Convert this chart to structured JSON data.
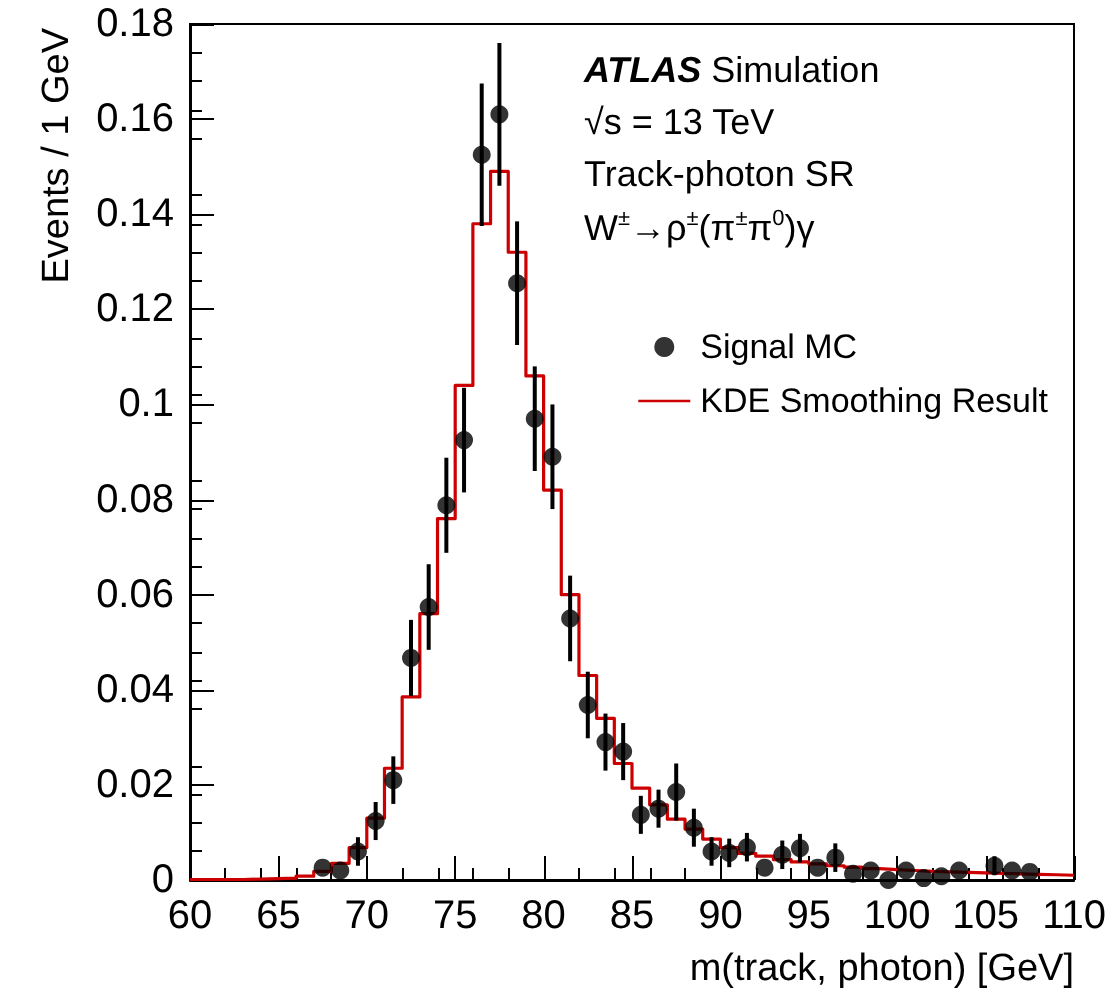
{
  "chart_data": {
    "type": "scatter",
    "xlabel": "m(track, photon) [GeV]",
    "ylabel": "Events / 1 GeV",
    "annotations": [
      "ATLAS Simulation",
      "√s = 13 TeV",
      "Track-photon SR",
      "W$^{±}$→ρ$^{±}$(π$^{±}$π$^{0}$)γ"
    ],
    "xlim": [
      60,
      110
    ],
    "xticks": [
      60,
      65,
      70,
      75,
      80,
      85,
      90,
      95,
      100,
      105,
      110
    ],
    "ylim": [
      0,
      0.18
    ],
    "yticks": [
      0,
      0.02,
      0.04,
      0.06,
      0.08,
      0.1,
      0.12,
      0.14,
      0.16,
      0.18
    ],
    "grid": false,
    "legend": "top right",
    "marker": "circle",
    "series": [
      {
        "name": "Signal MC",
        "color": "#000000",
        "x": [
          67.5,
          68.5,
          69.5,
          70.5,
          71.5,
          72.5,
          73.5,
          74.5,
          75.5,
          76.5,
          77.5,
          78.5,
          79.5,
          80.5,
          81.5,
          82.5,
          83.5,
          84.5,
          85.5,
          86.5,
          87.5,
          88.5,
          89.5,
          90.5,
          91.5,
          92.5,
          93.5,
          94.5,
          95.5,
          96.5,
          97.5,
          98.5,
          99.5,
          100.5,
          101.5,
          102.5,
          103.5,
          105.5,
          106.5,
          107.5
        ],
        "values": [
          0.0026,
          0.002,
          0.006,
          0.0124,
          0.021,
          0.0467,
          0.0574,
          0.0788,
          0.0925,
          0.1525,
          0.161,
          0.1255,
          0.097,
          0.089,
          0.055,
          0.0368,
          0.029,
          0.027,
          0.0137,
          0.015,
          0.0185,
          0.011,
          0.006,
          0.0057,
          0.0069,
          0.0026,
          0.0053,
          0.0067,
          0.0026,
          0.0047,
          0.0013,
          0.002,
          0,
          0.002,
          0.0004,
          0.0008,
          0.002,
          0.003,
          0.002,
          0.0017
        ],
        "errors": [
          null,
          null,
          0.003,
          0.004,
          0.005,
          0.008,
          0.009,
          0.01,
          0.011,
          0.015,
          0.015,
          0.013,
          0.011,
          0.011,
          0.009,
          0.007,
          0.006,
          0.006,
          0.004,
          0.004,
          0.006,
          0.004,
          0.003,
          0.003,
          0.003,
          null,
          0.003,
          0.003,
          null,
          0.003,
          null,
          null,
          null,
          null,
          null,
          null,
          null,
          0.002,
          null,
          null
        ]
      },
      {
        "name": "KDE Smoothing Result",
        "type": "histogram",
        "color": "#cc0000",
        "bins": [
          60,
          61,
          62,
          63,
          64,
          65,
          66,
          67,
          68,
          69,
          70,
          71,
          72,
          73,
          74,
          75,
          76,
          77,
          78,
          79,
          80,
          81,
          82,
          83,
          84,
          85,
          86,
          87,
          88,
          89,
          90,
          91,
          92,
          93,
          94,
          95,
          96,
          97,
          98,
          99,
          100,
          101,
          102,
          103,
          104,
          105,
          106,
          107,
          108,
          109,
          110
        ],
        "values": [
          0.0001,
          0.0001,
          0.0001,
          0.0002,
          0.0003,
          0.0004,
          0.0008,
          0.0018,
          0.0035,
          0.0068,
          0.013,
          0.0235,
          0.0385,
          0.056,
          0.076,
          0.104,
          0.138,
          0.149,
          0.132,
          0.106,
          0.082,
          0.06,
          0.043,
          0.034,
          0.0245,
          0.0193,
          0.0158,
          0.0128,
          0.0107,
          0.0086,
          0.0068,
          0.0056,
          0.005,
          0.0043,
          0.0038,
          0.0034,
          0.003,
          0.0027,
          0.0024,
          0.0022,
          0.002,
          0.0018,
          0.0017,
          0.0016,
          0.0015,
          0.0014,
          0.0013,
          0.0012,
          0.0011,
          0.001
        ]
      }
    ]
  }
}
